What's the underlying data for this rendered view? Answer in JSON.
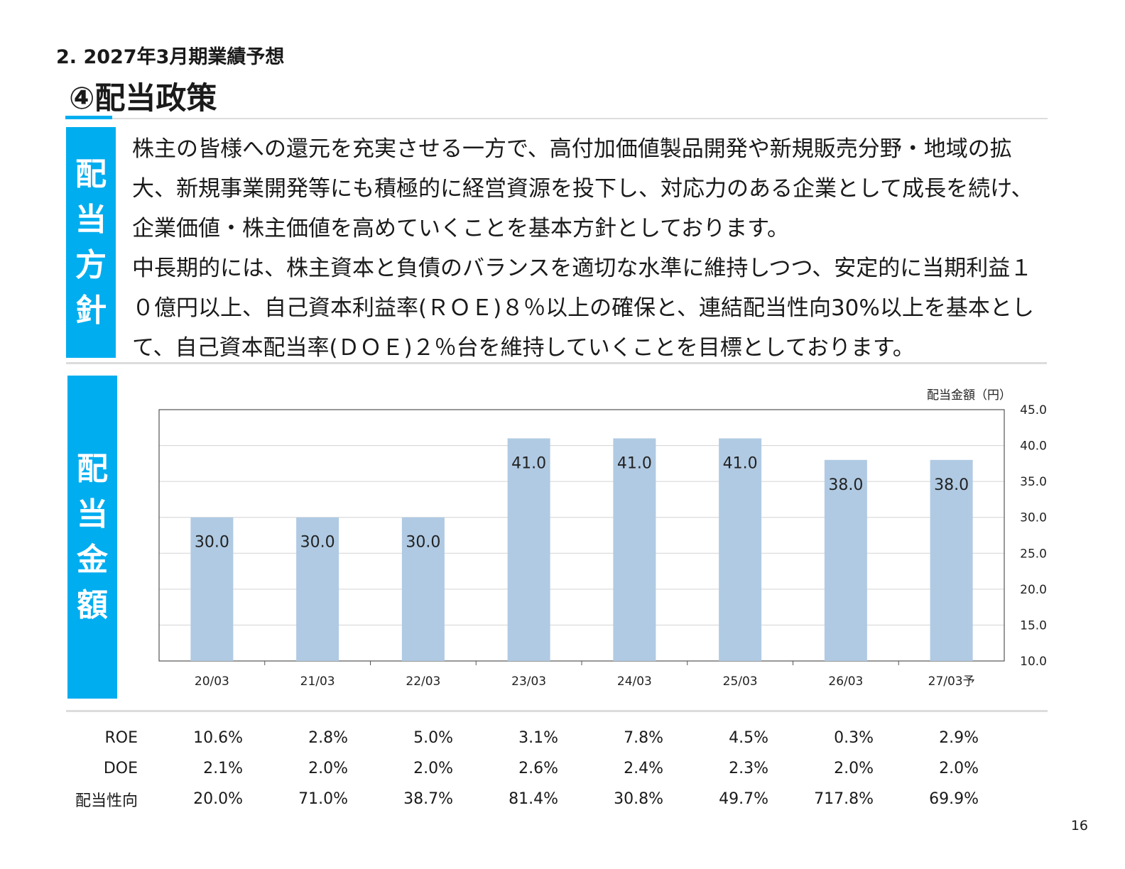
{
  "section_heading": "2. 2027年3月期業績予想",
  "page_title": "④配当政策",
  "policy_label": [
    "配",
    "当",
    "方",
    "針"
  ],
  "policy_text": [
    "株主の皆様への還元を充実させる一方で、高付加価値製品開発や新規販売分野・地域の拡大、新規事業開発等にも積極的に経営資源を投下し、対応力のある企業として成長を続け、企業価値・株主価値を高めていくことを基本方針としております。",
    "中長期的には、株主資本と負債のバランスを適切な水準に維持しつつ、安定的に当期利益１０億円以上、自己資本利益率(ＲＯＥ)８％以上の確保と、連結配当性向30%以上を基本として、自己資本配当率(ＤＯＥ)２％台を維持していくことを目標としております。"
  ],
  "amount_label": [
    "配",
    "当",
    "金",
    "額"
  ],
  "chart_data": {
    "type": "bar",
    "title": "",
    "ylabel": "配当金額（円）",
    "xlabel": "",
    "categories": [
      "20/03",
      "21/03",
      "22/03",
      "23/03",
      "24/03",
      "25/03",
      "26/03",
      "27/03予"
    ],
    "values": [
      30.0,
      30.0,
      30.0,
      41.0,
      41.0,
      41.0,
      38.0,
      38.0
    ],
    "value_labels": [
      "30.0",
      "30.0",
      "30.0",
      "41.0",
      "41.0",
      "41.0",
      "38.0",
      "38.0"
    ],
    "ylim": [
      10,
      45
    ],
    "yticks": [
      "10.0",
      "15.0",
      "20.0",
      "25.0",
      "30.0",
      "35.0",
      "40.0",
      "45.0"
    ],
    "y_axis_side": "right",
    "grid": true,
    "bar_color": "#b0cae3"
  },
  "metrics": {
    "rows": [
      {
        "label": "ROE",
        "values": [
          "10.6%",
          "2.8%",
          "5.0%",
          "3.1%",
          "7.8%",
          "4.5%",
          "0.3%",
          "2.9%"
        ]
      },
      {
        "label": "DOE",
        "values": [
          "2.1%",
          "2.0%",
          "2.0%",
          "2.6%",
          "2.4%",
          "2.3%",
          "2.0%",
          "2.0%"
        ]
      },
      {
        "label": "配当性向",
        "values": [
          "20.0%",
          "71.0%",
          "38.7%",
          "81.4%",
          "30.8%",
          "49.7%",
          "717.8%",
          "69.9%"
        ]
      }
    ]
  },
  "page_number": "16",
  "colors": {
    "accent": "#00adef",
    "bar": "#b0cae3",
    "rule": "#dcdcdc"
  }
}
